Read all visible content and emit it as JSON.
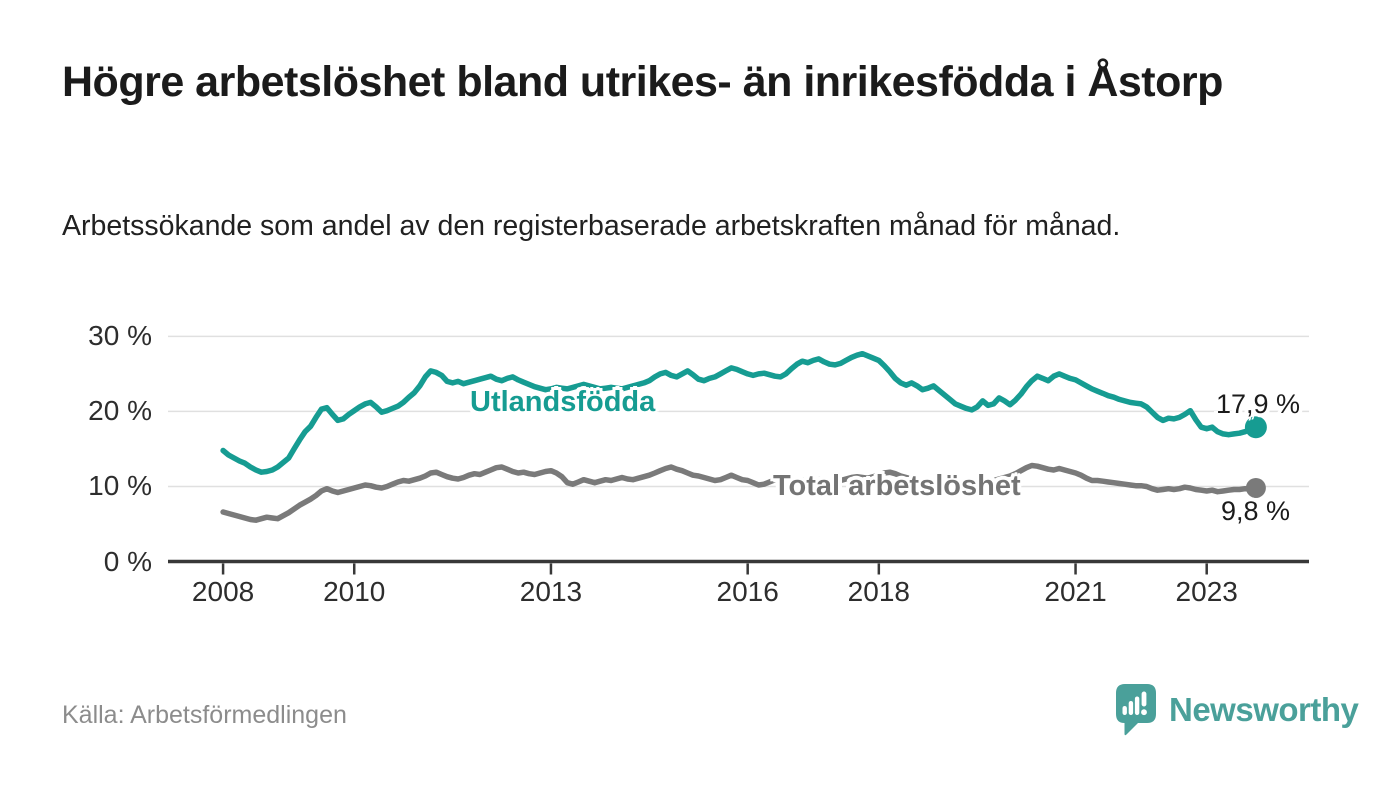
{
  "header": {
    "title": "Högre arbetslöshet bland utrikes- än inrikesfödda i Åstorp",
    "subtitle": "Arbetssökande som andel av den registerbaserade arbetskraften månad för månad."
  },
  "footer": {
    "source": "Källa: Arbetsförmedlingen",
    "logo_text": "Newsworthy"
  },
  "colors": {
    "accent_teal": "#169c92",
    "series_gray": "#7a7a7a",
    "label_gray": "#747474",
    "logo_teal": "#4aa09a",
    "grid": "#e0e0e0",
    "axis": "#383838",
    "tick_text": "#2d2d2d",
    "title_text": "#1b1b1b",
    "source_text": "#8c8c8c"
  },
  "chart_data": {
    "type": "line",
    "title": "Högre arbetslöshet bland utrikes- än inrikesfödda i Åstorp",
    "subtitle": "Arbetssökande som andel av den registerbaserade arbetskraften månad för månad.",
    "xlabel": "",
    "ylabel": "",
    "grid": "horizontal",
    "legend_position": "inline-labels",
    "x_start_year": 2008,
    "x_interval_months": 1,
    "x_end": "2023-10",
    "xlim": [
      2007.16,
      2024.56
    ],
    "ylim": [
      0,
      30
    ],
    "y_ticks": [
      {
        "value": 0,
        "label": "0 %"
      },
      {
        "value": 10,
        "label": "10 %"
      },
      {
        "value": 20,
        "label": "20 %"
      },
      {
        "value": 30,
        "label": "30 %"
      }
    ],
    "x_ticks": [
      {
        "value": 2008,
        "label": "2008"
      },
      {
        "value": 2010,
        "label": "2010"
      },
      {
        "value": 2013,
        "label": "2013"
      },
      {
        "value": 2016,
        "label": "2016"
      },
      {
        "value": 2018,
        "label": "2018"
      },
      {
        "value": 2021,
        "label": "2021"
      },
      {
        "value": 2023,
        "label": "2023"
      }
    ],
    "series": [
      {
        "name": "Utlandsfödda",
        "color": "#169c92",
        "end_label": "17,9 %",
        "end_value": 17.9,
        "line_width": 5.5,
        "end_dot_radius": 11,
        "values": [
          14.8,
          14.2,
          13.8,
          13.4,
          13.1,
          12.6,
          12.2,
          11.9,
          12.0,
          12.2,
          12.6,
          13.2,
          13.8,
          15.0,
          16.2,
          17.3,
          18.0,
          19.2,
          20.3,
          20.5,
          19.6,
          18.8,
          19.0,
          19.6,
          20.1,
          20.6,
          21.0,
          21.2,
          20.6,
          19.9,
          20.1,
          20.4,
          20.7,
          21.2,
          21.9,
          22.5,
          23.4,
          24.6,
          25.4,
          25.2,
          24.8,
          24.0,
          23.8,
          24.0,
          23.7,
          23.9,
          24.1,
          24.3,
          24.5,
          24.7,
          24.3,
          24.1,
          24.4,
          24.6,
          24.2,
          23.9,
          23.6,
          23.3,
          23.1,
          22.9,
          23.0,
          23.2,
          23.1,
          23.0,
          23.2,
          23.4,
          23.6,
          23.4,
          23.2,
          23.0,
          23.1,
          23.2,
          23.1,
          23.0,
          23.2,
          23.4,
          23.6,
          23.8,
          24.1,
          24.6,
          25.0,
          25.2,
          24.8,
          24.6,
          25.0,
          25.4,
          24.9,
          24.3,
          24.1,
          24.4,
          24.6,
          25.0,
          25.4,
          25.8,
          25.6,
          25.3,
          25.0,
          24.8,
          25.0,
          25.1,
          24.9,
          24.7,
          24.6,
          25.0,
          25.7,
          26.3,
          26.7,
          26.5,
          26.8,
          27.0,
          26.6,
          26.3,
          26.2,
          26.4,
          26.8,
          27.2,
          27.5,
          27.7,
          27.4,
          27.1,
          26.8,
          26.1,
          25.3,
          24.4,
          23.8,
          23.5,
          23.8,
          23.4,
          22.9,
          23.1,
          23.4,
          22.8,
          22.2,
          21.6,
          21.0,
          20.7,
          20.4,
          20.2,
          20.6,
          21.4,
          20.8,
          21.0,
          21.8,
          21.4,
          20.9,
          21.5,
          22.3,
          23.3,
          24.1,
          24.7,
          24.4,
          24.1,
          24.7,
          25.0,
          24.7,
          24.4,
          24.2,
          23.8,
          23.4,
          23.0,
          22.7,
          22.4,
          22.1,
          21.9,
          21.6,
          21.4,
          21.2,
          21.1,
          21.0,
          20.6,
          19.9,
          19.2,
          18.8,
          19.1,
          19.0,
          19.2,
          19.6,
          20.1,
          18.9,
          17.9,
          17.7,
          17.9,
          17.3,
          17.0,
          16.9,
          17.0,
          17.1,
          17.3,
          17.6,
          17.9
        ]
      },
      {
        "name": "Total arbetslöshet",
        "color": "#7a7a7a",
        "end_label": "9,8 %",
        "end_value": 9.8,
        "line_width": 5.5,
        "end_dot_radius": 10,
        "values": [
          6.6,
          6.4,
          6.2,
          6.0,
          5.8,
          5.6,
          5.5,
          5.7,
          5.9,
          5.8,
          5.7,
          6.1,
          6.5,
          7.0,
          7.5,
          7.9,
          8.3,
          8.8,
          9.4,
          9.7,
          9.4,
          9.2,
          9.4,
          9.6,
          9.8,
          10.0,
          10.2,
          10.1,
          9.9,
          9.8,
          10.0,
          10.3,
          10.6,
          10.8,
          10.7,
          10.9,
          11.1,
          11.4,
          11.8,
          11.9,
          11.6,
          11.3,
          11.1,
          11.0,
          11.2,
          11.5,
          11.7,
          11.6,
          11.9,
          12.2,
          12.5,
          12.6,
          12.3,
          12.0,
          11.8,
          11.9,
          11.7,
          11.6,
          11.8,
          12.0,
          12.1,
          11.8,
          11.3,
          10.5,
          10.3,
          10.6,
          10.9,
          10.7,
          10.5,
          10.7,
          10.9,
          10.8,
          11.0,
          11.2,
          11.0,
          10.9,
          11.1,
          11.3,
          11.5,
          11.8,
          12.1,
          12.4,
          12.6,
          12.3,
          12.1,
          11.8,
          11.5,
          11.4,
          11.2,
          11.0,
          10.8,
          10.9,
          11.2,
          11.5,
          11.2,
          10.9,
          10.8,
          10.5,
          10.2,
          10.3,
          10.6,
          10.9,
          11.1,
          10.9,
          10.7,
          10.8,
          10.9,
          10.7,
          10.8,
          10.9,
          11.0,
          10.8,
          10.7,
          10.8,
          11.0,
          11.2,
          11.3,
          11.2,
          11.1,
          11.3,
          11.5,
          11.8,
          11.9,
          11.7,
          11.4,
          11.2,
          11.0,
          10.9,
          10.8,
          10.7,
          10.8,
          10.9,
          10.8,
          10.6,
          10.5,
          10.4,
          10.3,
          10.4,
          10.6,
          10.8,
          10.7,
          10.8,
          11.0,
          11.2,
          11.4,
          11.7,
          12.1,
          12.5,
          12.8,
          12.7,
          12.5,
          12.3,
          12.2,
          12.4,
          12.2,
          12.0,
          11.8,
          11.5,
          11.1,
          10.8,
          10.8,
          10.7,
          10.6,
          10.5,
          10.4,
          10.3,
          10.2,
          10.1,
          10.1,
          10.0,
          9.7,
          9.5,
          9.6,
          9.7,
          9.6,
          9.7,
          9.9,
          9.8,
          9.6,
          9.5,
          9.4,
          9.5,
          9.3,
          9.4,
          9.5,
          9.6,
          9.6,
          9.7,
          9.7,
          9.8
        ]
      }
    ]
  }
}
